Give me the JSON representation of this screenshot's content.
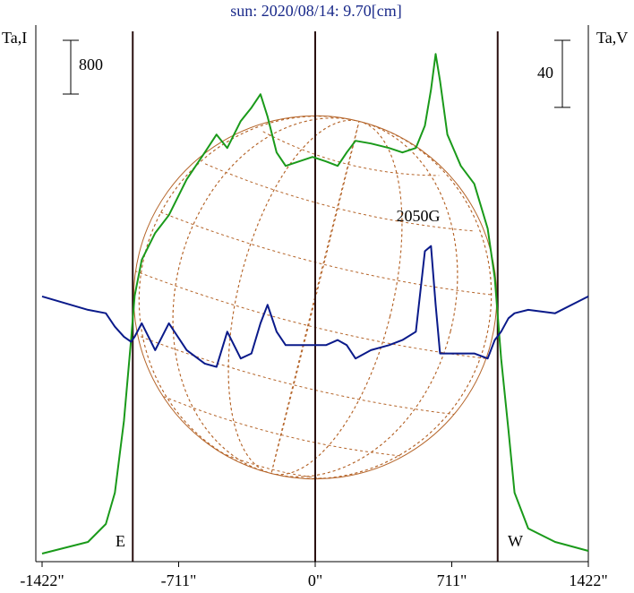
{
  "chart_data": {
    "type": "line",
    "title": "sun: 2020/08/14: 9.70[cm]",
    "y_label": "Ta,I",
    "y2_label": "Ta,V",
    "y_scale": 800,
    "y2_scale": 40,
    "annotation": "2050G",
    "east_label": "E",
    "west_label": "W",
    "xlim": [
      -1422,
      1422
    ],
    "xticks": [
      {
        "value": -1422,
        "label": "-1422\""
      },
      {
        "value": -711,
        "label": "-711\""
      },
      {
        "value": 0,
        "label": "0\""
      },
      {
        "value": 711,
        "label": "711\""
      },
      {
        "value": 1422,
        "label": "1422\""
      }
    ],
    "vlines": [
      -950,
      0,
      950
    ],
    "disk_radius": 945,
    "ylim": [
      0,
      7870
    ],
    "y2lim": [
      0,
      315
    ],
    "x": [
      -1422,
      -1183,
      -1090,
      -1043,
      -996,
      -959,
      -940,
      -903,
      -833,
      -762,
      -669,
      -575,
      -514,
      -458,
      -388,
      -332,
      -285,
      -248,
      -201,
      -154,
      -84,
      -14,
      56,
      117,
      164,
      210,
      290,
      384,
      454,
      524,
      571,
      603,
      627,
      650,
      688,
      758,
      828,
      898,
      935,
      968,
      1006,
      1038,
      1109,
      1249,
      1422
    ],
    "series": [
      {
        "name": "Ta,I",
        "color": "#1a9a1a",
        "values": [
          93,
          267,
          533,
          1000,
          2067,
          3267,
          3933,
          4467,
          4867,
          5133,
          5667,
          6067,
          6333,
          6133,
          6533,
          6733,
          6933,
          6600,
          6067,
          5867,
          5933,
          6000,
          5933,
          5867,
          6067,
          6240,
          6200,
          6133,
          6067,
          6133,
          6467,
          7000,
          7533,
          7133,
          6333,
          5867,
          5600,
          4933,
          4200,
          3000,
          1933,
          1000,
          467,
          267,
          133
        ]
      },
      {
        "name": "Ta,V",
        "color": "#0a1a8a",
        "axis": "y2",
        "values": [
          157,
          149,
          147,
          139,
          133,
          130,
          133,
          141,
          125,
          141,
          125,
          117,
          115,
          136,
          120,
          123,
          141,
          152,
          136,
          128,
          128,
          128,
          128,
          131,
          128,
          120,
          125,
          128,
          131,
          136,
          184,
          187,
          152,
          123,
          123,
          123,
          123,
          120,
          131,
          136,
          144,
          147,
          149,
          147,
          157
        ]
      }
    ]
  }
}
